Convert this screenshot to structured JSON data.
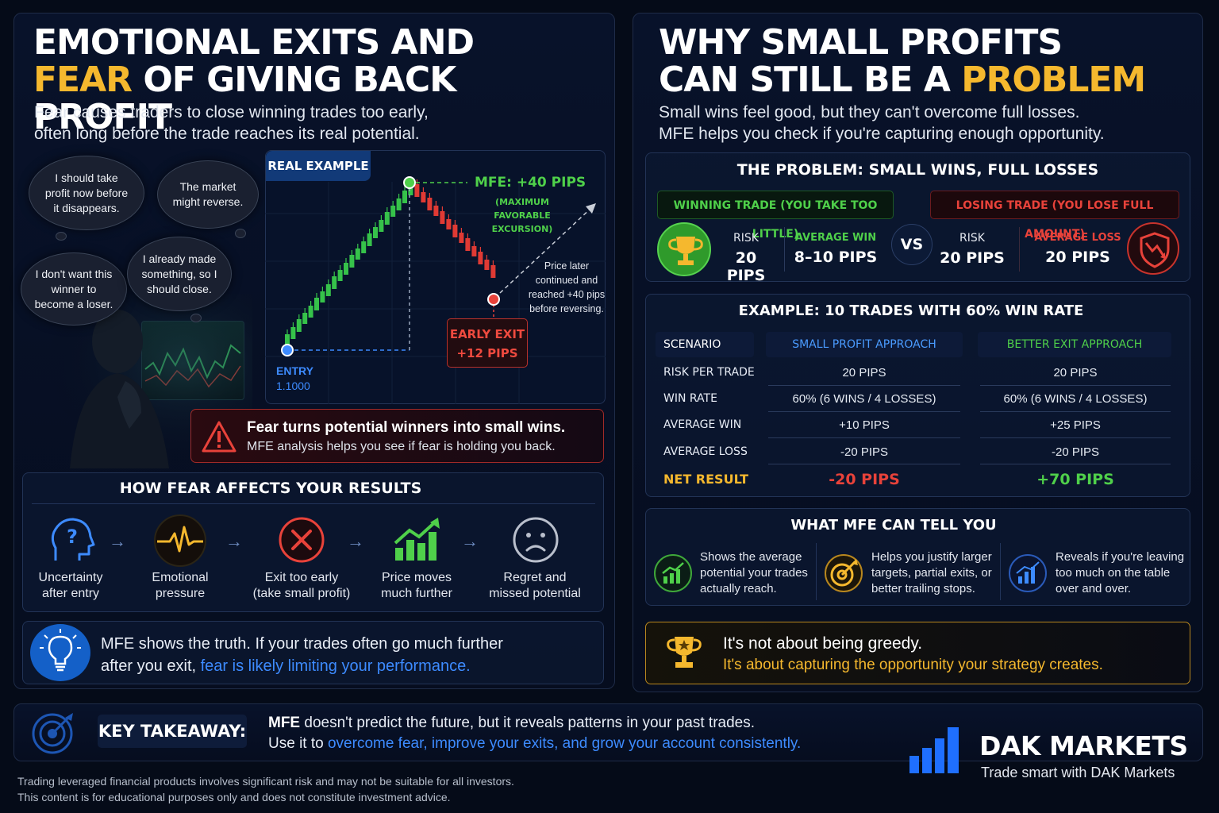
{
  "left": {
    "title_line1": "EMOTIONAL EXITS AND",
    "title_line2_accent": "FEAR",
    "title_line2_rest": "OF GIVING BACK PROFIT",
    "subtitle_line1": "Fear causes traders to close winning trades too early,",
    "subtitle_line2": "often long before the trade reaches its real potential.",
    "thoughts": [
      "I should take profit now before it disappears.",
      "The market might reverse.",
      "I don't want this winner to become a loser.",
      "I already made something, so I should close."
    ],
    "example": {
      "badge": "REAL EXAMPLE",
      "mfe_label": "MFE: +40 PIPS",
      "mfe_sub1": "(MAXIMUM FAVORABLE",
      "mfe_sub2": "EXCURSION)",
      "entry_label": "ENTRY",
      "entry_price": "1.1000",
      "exit_label1": "EARLY EXIT",
      "exit_label2": "+12 PIPS",
      "note": [
        "Price later",
        "continued and",
        "reached +40 pips",
        "before reversing."
      ]
    },
    "warning": {
      "line1": "Fear turns potential winners into small wins.",
      "line2": "MFE analysis helps you see if fear is holding you back."
    },
    "flow": {
      "title": "HOW FEAR AFFECTS YOUR RESULTS",
      "steps": [
        {
          "l1": "Uncertainty",
          "l2": "after entry",
          "icon": "head-question-icon"
        },
        {
          "l1": "Emotional",
          "l2": "pressure",
          "icon": "pulse-icon"
        },
        {
          "l1": "Exit too early",
          "l2": "(take small profit)",
          "icon": "x-circle-icon"
        },
        {
          "l1": "Price moves",
          "l2": "much further",
          "icon": "rising-bars-icon"
        },
        {
          "l1": "Regret and",
          "l2": "missed potential",
          "icon": "sad-face-icon"
        }
      ]
    },
    "truth": {
      "line1": "MFE shows the truth. If your trades often go much further",
      "line2_plain": "after you exit,",
      "line2_accent": "fear is likely limiting your performance."
    }
  },
  "right": {
    "title_line1": "WHY SMALL PROFITS",
    "title_line2_plain": "CAN STILL BE A",
    "title_line2_accent": "PROBLEM",
    "subtitle_line1": "Small wins feel good, but they can't overcome full losses.",
    "subtitle_line2": "MFE helps you check if you're capturing enough opportunity.",
    "problem": {
      "title": "THE PROBLEM: SMALL WINS, FULL LOSSES",
      "win_tag": "WINNING TRADE (YOU TAKE TOO LITTLE)",
      "lose_tag": "LOSING TRADE (YOU LOSE FULL AMOUNT)",
      "win_risk_label": "RISK",
      "win_risk_value": "20 PIPS",
      "avg_win_label": "AVERAGE WIN",
      "avg_win_value": "8–10 PIPS",
      "vs": "VS",
      "lose_risk_label": "RISK",
      "lose_risk_value": "20 PIPS",
      "avg_loss_label": "AVERAGE LOSS",
      "avg_loss_value": "20 PIPS"
    },
    "example_table": {
      "title": "EXAMPLE: 10 TRADES WITH 60% WIN RATE",
      "headers": [
        "SCENARIO",
        "SMALL PROFIT APPROACH",
        "BETTER EXIT APPROACH"
      ],
      "rows": [
        [
          "RISK PER TRADE",
          "20 PIPS",
          "20 PIPS"
        ],
        [
          "WIN RATE",
          "60% (6 WINS / 4 LOSSES)",
          "60% (6 WINS / 4 LOSSES)"
        ],
        [
          "AVERAGE WIN",
          "+10 PIPS",
          "+25 PIPS"
        ],
        [
          "AVERAGE LOSS",
          "-20 PIPS",
          "-20 PIPS"
        ]
      ],
      "net_label": "NET RESULT",
      "net_small": "-20 PIPS",
      "net_better": "+70 PIPS"
    },
    "mfe_tell": {
      "title": "WHAT MFE CAN TELL YOU",
      "items": [
        [
          "Shows the average",
          "potential your trades",
          "actually reach."
        ],
        [
          "Helps you justify larger",
          "targets, partial exits, or",
          "better trailing stops."
        ],
        [
          "Reveals if you're leaving",
          "too much on the table",
          "over and over."
        ]
      ]
    },
    "greedy": {
      "line1": "It's not about being greedy.",
      "line2": "It's about capturing the opportunity your strategy creates."
    }
  },
  "takeaway": {
    "label": "KEY TAKEAWAY:",
    "line1_bold": "MFE",
    "line1_rest": "doesn't predict the future, but it reveals patterns in your past trades.",
    "line2_plain": "Use it to",
    "line2_accent": "overcome fear, improve your exits, and grow your account consistently."
  },
  "brand": {
    "name": "DAK MARKETS",
    "tagline": "Trade smart with DAK Markets"
  },
  "disclaimer": {
    "line1": "Trading leveraged financial products involves significant risk and may not be suitable for all investors.",
    "line2": "This content is for educational purposes only and does not constitute investment advice."
  },
  "colors": {
    "accent_yellow": "#f5b82e",
    "accent_blue": "#3d8bff",
    "win_green": "#4fd04a",
    "loss_red": "#e8423a",
    "background": "#050b18"
  }
}
